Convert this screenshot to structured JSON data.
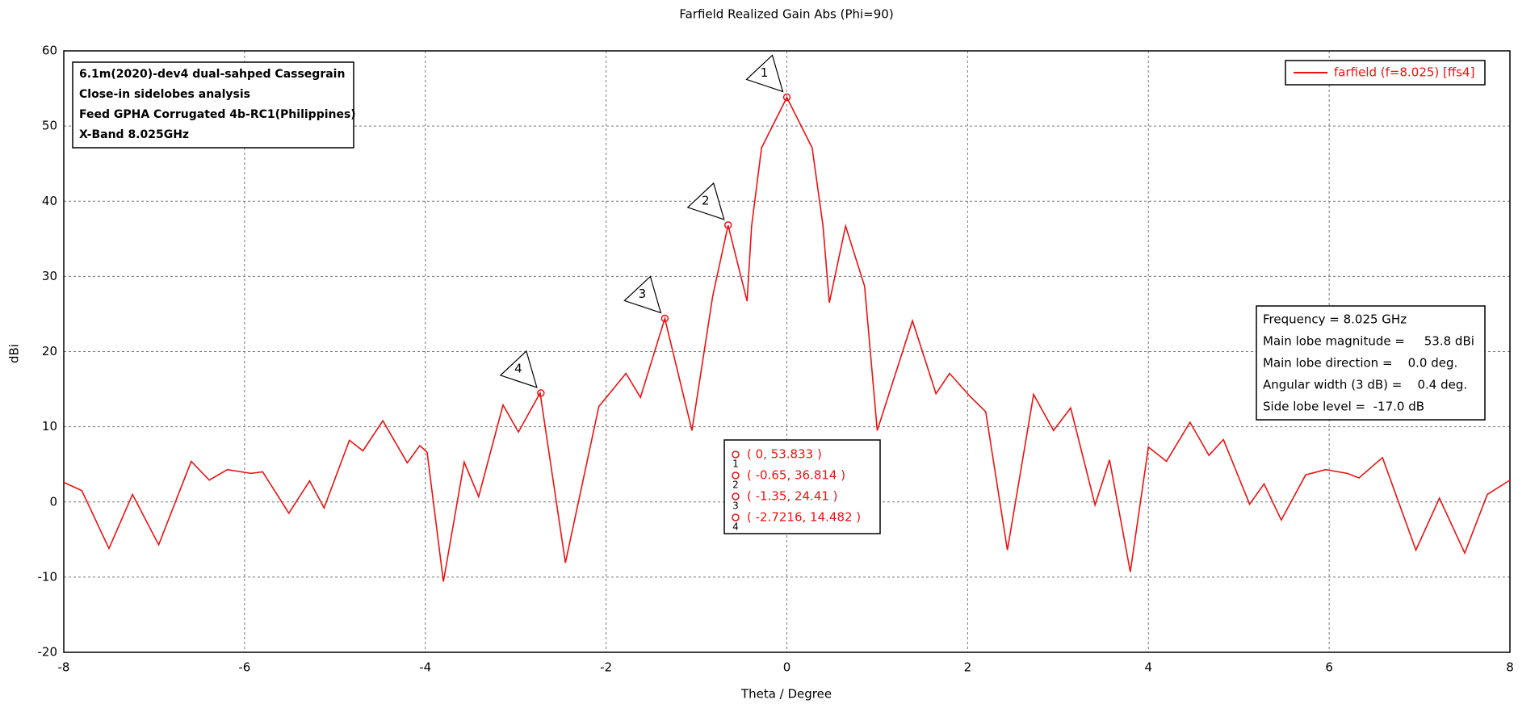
{
  "chart_data": {
    "type": "line",
    "title": "Farfield Realized Gain Abs (Phi=90)",
    "x_label": "Theta / Degree",
    "y_label": "dBi",
    "xlim": [
      -8,
      8
    ],
    "xticks": [
      -8,
      -6,
      -4,
      -2,
      0,
      2,
      4,
      6,
      8
    ],
    "ylim": [
      -20,
      60
    ],
    "yticks": [
      -20,
      -10,
      0,
      10,
      20,
      30,
      40,
      50,
      60
    ],
    "grid": true,
    "legend": "top-right",
    "series": [
      {
        "name": "farfield (f=8.025) [ffs4]",
        "color": "#ee1111",
        "x": [
          -8,
          -7.8,
          -7.5,
          -7.24,
          -6.95,
          -6.59,
          -6.39,
          -6.19,
          -5.93,
          -5.8,
          -5.51,
          -5.28,
          -5.12,
          -4.84,
          -4.69,
          -4.47,
          -4.2,
          -4.06,
          -3.98,
          -3.8,
          -3.57,
          -3.41,
          -3.14,
          -2.97,
          -2.73,
          -2.45,
          -2.08,
          -1.78,
          -1.62,
          -1.35,
          -1.05,
          -0.82,
          -0.65,
          -0.44,
          -0.39,
          -0.28,
          0,
          0.28,
          0.4,
          0.47,
          0.65,
          0.86,
          1.0,
          1.39,
          1.65,
          1.8,
          2.03,
          2.2,
          2.44,
          2.73,
          2.95,
          3.14,
          3.41,
          3.57,
          3.8,
          4.0,
          4.2,
          4.46,
          4.67,
          4.83,
          5.12,
          5.28,
          5.47,
          5.74,
          5.96,
          6.2,
          6.33,
          6.59,
          6.96,
          7.22,
          7.5,
          7.75,
          8
        ],
        "values": [
          2.6,
          1.5,
          -6.2,
          1.0,
          -5.7,
          5.4,
          2.9,
          4.3,
          3.8,
          4.0,
          -1.5,
          2.8,
          -0.8,
          8.2,
          6.8,
          10.8,
          5.2,
          7.5,
          6.6,
          -10.6,
          5.3,
          0.7,
          12.9,
          9.3,
          14.5,
          -8.1,
          12.7,
          17.1,
          13.9,
          24.4,
          9.5,
          27.4,
          36.8,
          26.7,
          36.7,
          47.1,
          53.8,
          47.1,
          36.7,
          26.5,
          36.7,
          28.7,
          9.5,
          24.1,
          14.4,
          17.1,
          14.0,
          12.0,
          -6.4,
          14.3,
          9.5,
          12.5,
          -0.4,
          5.6,
          -9.3,
          7.3,
          5.4,
          10.6,
          6.2,
          8.3,
          -0.3,
          2.4,
          -2.4,
          3.6,
          4.3,
          3.8,
          3.2,
          5.9,
          -6.4,
          0.5,
          -6.8,
          1.0,
          2.9
        ]
      }
    ],
    "markers": [
      {
        "id": "1",
        "x": 0,
        "y": 53.833,
        "label": "( 0, 53.833 )"
      },
      {
        "id": "2",
        "x": -0.65,
        "y": 36.814,
        "label": "( -0.65, 36.814 )"
      },
      {
        "id": "3",
        "x": -1.35,
        "y": 24.41,
        "label": "( -1.35, 24.41 )"
      },
      {
        "id": "4",
        "x": -2.7216,
        "y": 14.482,
        "label": "( -2.7216, 14.482 )"
      }
    ],
    "annotation": [
      "6.1m(2020)-dev4 dual-sahped Cassegrain",
      "Close-in sidelobes analysis",
      "Feed GPHA Corrugated 4b-RC1(Philippines)",
      "X-Band 8.025GHz"
    ],
    "info": [
      "Frequency = 8.025 GHz",
      "Main lobe magnitude =     53.8 dBi",
      "Main lobe direction =    0.0 deg.",
      "Angular width (3 dB) =    0.4 deg.",
      "Side lobe level =  -17.0 dB"
    ]
  }
}
